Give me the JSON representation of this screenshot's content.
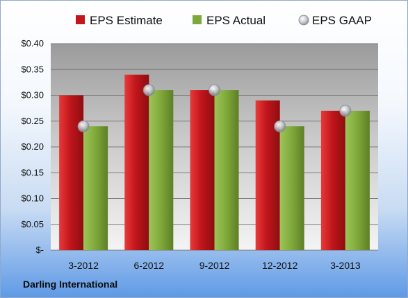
{
  "company": "Darling International",
  "colors": {
    "estimate": "#c0161c",
    "actual": "#7fa83a",
    "gaap": "#b8bcc2"
  },
  "chart_data": {
    "type": "bar",
    "categories": [
      "3-2012",
      "6-2012",
      "9-2012",
      "12-2012",
      "3-2013"
    ],
    "series": [
      {
        "name": "EPS Estimate",
        "kind": "bar",
        "values": [
          0.3,
          0.34,
          0.31,
          0.29,
          0.27
        ]
      },
      {
        "name": "EPS Actual",
        "kind": "bar",
        "values": [
          0.24,
          0.31,
          0.31,
          0.24,
          0.27
        ]
      },
      {
        "name": "EPS GAAP",
        "kind": "marker",
        "values": [
          0.24,
          0.31,
          0.31,
          0.24,
          0.27
        ]
      }
    ],
    "ylim": [
      0,
      0.4
    ],
    "yticks": [
      0,
      0.05,
      0.1,
      0.15,
      0.2,
      0.25,
      0.3,
      0.35,
      0.4
    ],
    "ytick_labels": [
      "$-",
      "$0.05",
      "$0.10",
      "$0.15",
      "$0.20",
      "$0.25",
      "$0.30",
      "$0.35",
      "$0.40"
    ],
    "legend": "top",
    "grid": true
  }
}
